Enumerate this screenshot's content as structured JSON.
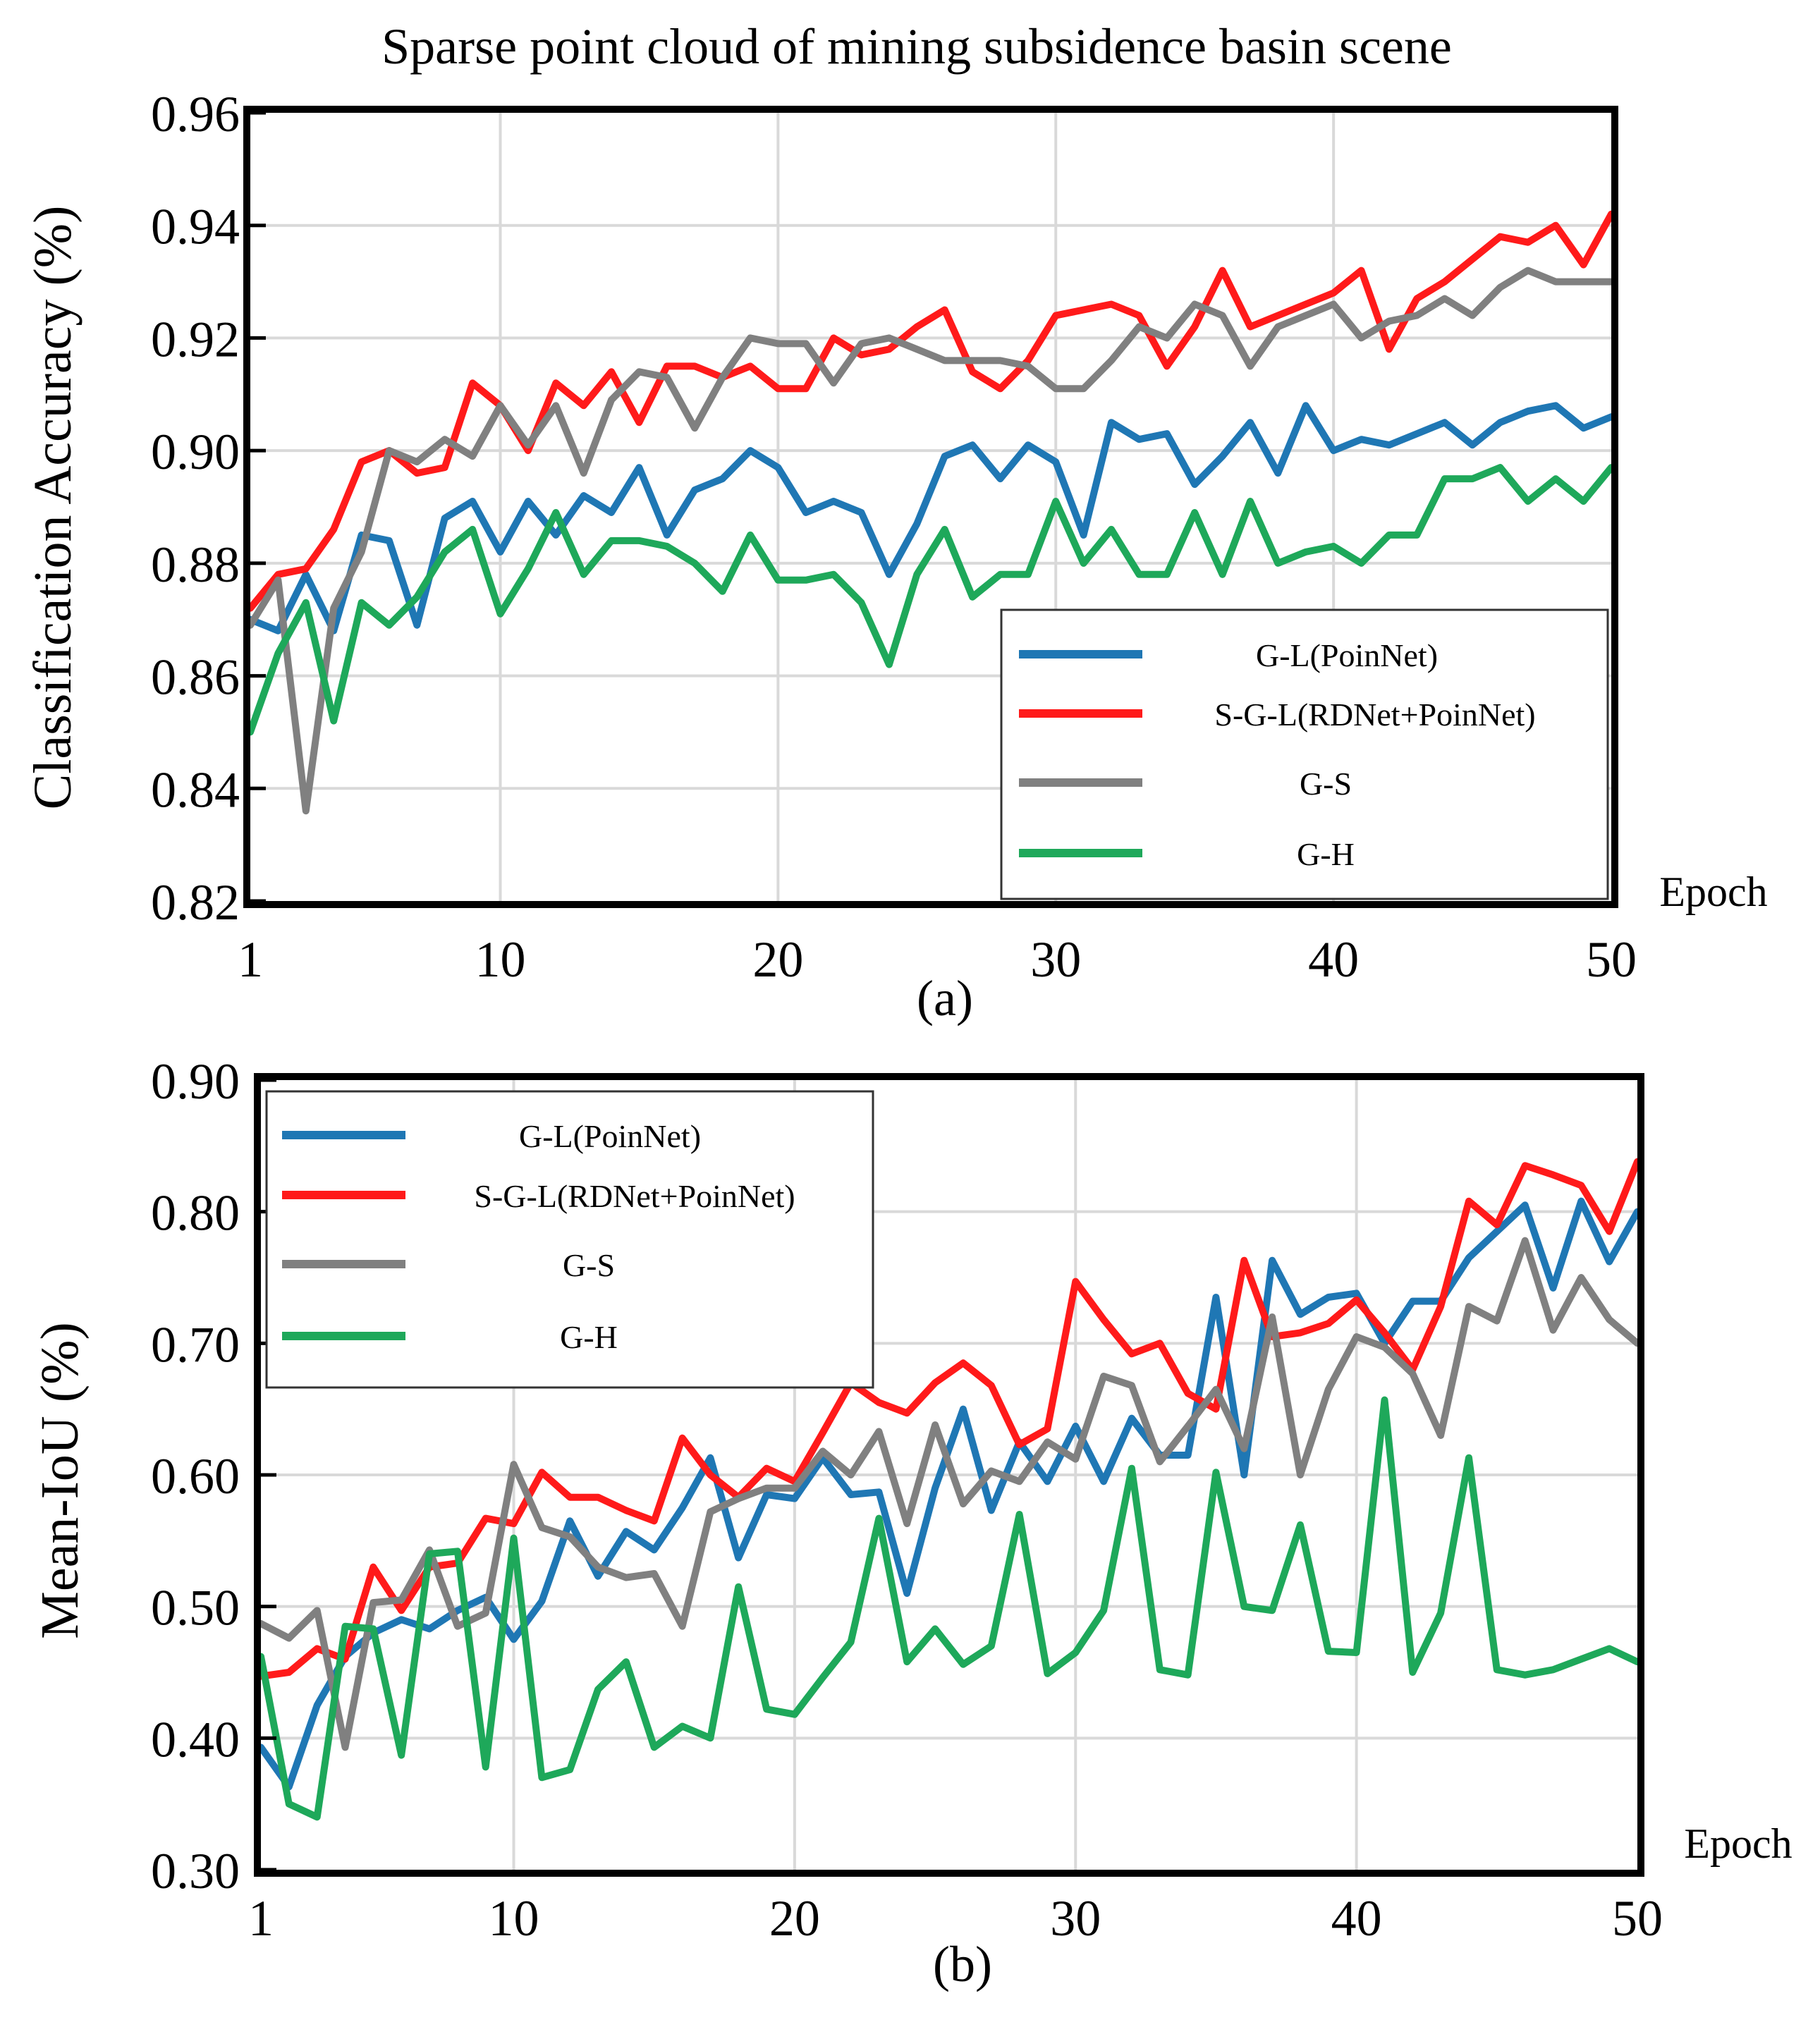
{
  "figure_title": "Sparse point cloud of mining subsidence basin scene",
  "colors": {
    "G-L(PoinNet)": "#1f77b4",
    "S-G-L(RDNet+PoinNet)": "#ff1a1a",
    "G-S": "#808080",
    "G-H": "#1ea85a"
  },
  "chart_data": [
    {
      "type": "line",
      "panel_label": "(a)",
      "title": "Sparse point cloud of mining subsidence basin scene",
      "xlabel": "Epoch",
      "ylabel": "Classification Accuracy (%)",
      "xlim": [
        1,
        50
      ],
      "ylim": [
        0.82,
        0.96
      ],
      "xticks": [
        1,
        10,
        20,
        30,
        40,
        50
      ],
      "yticks": [
        0.82,
        0.84,
        0.86,
        0.88,
        0.9,
        0.92,
        0.94,
        0.96
      ],
      "ytick_labels": [
        "0.82",
        "0.84",
        "0.86",
        "0.88",
        "0.90",
        "0.92",
        "0.94",
        "0.96"
      ],
      "grid": true,
      "legend_position": "lower-right",
      "series": [
        {
          "name": "G-L(PoinNet)",
          "values": [
            0.87,
            0.868,
            0.878,
            0.868,
            0.885,
            0.884,
            0.869,
            0.888,
            0.891,
            0.882,
            0.891,
            0.885,
            0.892,
            0.889,
            0.897,
            0.885,
            0.893,
            0.895,
            0.9,
            0.897,
            0.889,
            0.891,
            0.889,
            0.878,
            0.887,
            0.899,
            0.901,
            0.895,
            0.901,
            0.898,
            0.885,
            0.905,
            0.902,
            0.903,
            0.894,
            0.899,
            0.905,
            0.896,
            0.908,
            0.9,
            0.902,
            0.901,
            0.903,
            0.905,
            0.901,
            0.905,
            0.907,
            0.908,
            0.904,
            0.906
          ]
        },
        {
          "name": "S-G-L(RDNet+PoinNet)",
          "values": [
            0.872,
            0.878,
            0.879,
            0.886,
            0.898,
            0.9,
            0.896,
            0.897,
            0.912,
            0.908,
            0.9,
            0.912,
            0.908,
            0.914,
            0.905,
            0.915,
            0.915,
            0.913,
            0.915,
            0.911,
            0.911,
            0.92,
            0.917,
            0.918,
            0.922,
            0.925,
            0.914,
            0.911,
            0.916,
            0.924,
            0.925,
            0.926,
            0.924,
            0.915,
            0.922,
            0.932,
            0.922,
            0.924,
            0.926,
            0.928,
            0.932,
            0.918,
            0.927,
            0.93,
            0.934,
            0.938,
            0.937,
            0.94,
            0.933,
            0.942
          ]
        },
        {
          "name": "G-S",
          "values": [
            0.869,
            0.877,
            0.836,
            0.872,
            0.882,
            0.9,
            0.898,
            0.902,
            0.899,
            0.908,
            0.901,
            0.908,
            0.896,
            0.909,
            0.914,
            0.913,
            0.904,
            0.913,
            0.92,
            0.919,
            0.919,
            0.912,
            0.919,
            0.92,
            0.918,
            0.916,
            0.916,
            0.916,
            0.915,
            0.911,
            0.911,
            0.916,
            0.922,
            0.92,
            0.926,
            0.924,
            0.915,
            0.922,
            0.924,
            0.926,
            0.92,
            0.923,
            0.924,
            0.927,
            0.924,
            0.929,
            0.932,
            0.93,
            0.93,
            0.93
          ]
        },
        {
          "name": "G-H",
          "values": [
            0.85,
            0.864,
            0.873,
            0.852,
            0.873,
            0.869,
            0.874,
            0.882,
            0.886,
            0.871,
            0.879,
            0.889,
            0.878,
            0.884,
            0.884,
            0.883,
            0.88,
            0.875,
            0.885,
            0.877,
            0.877,
            0.878,
            0.873,
            0.862,
            0.878,
            0.886,
            0.874,
            0.878,
            0.878,
            0.891,
            0.88,
            0.886,
            0.878,
            0.878,
            0.889,
            0.878,
            0.891,
            0.88,
            0.882,
            0.883,
            0.88,
            0.885,
            0.885,
            0.895,
            0.895,
            0.897,
            0.891,
            0.895,
            0.891,
            0.897
          ]
        }
      ]
    },
    {
      "type": "line",
      "panel_label": "(b)",
      "title": "",
      "xlabel": "Epoch",
      "ylabel": "Mean-IoU  (%)",
      "xlim": [
        1,
        50
      ],
      "ylim": [
        0.3,
        0.9
      ],
      "xticks": [
        1,
        10,
        20,
        30,
        40,
        50
      ],
      "yticks": [
        0.3,
        0.4,
        0.5,
        0.6,
        0.7,
        0.8,
        0.9
      ],
      "ytick_labels": [
        "0.30",
        "0.40",
        "0.50",
        "0.60",
        "0.70",
        "0.80",
        "0.90"
      ],
      "grid": true,
      "legend_position": "upper-left",
      "series": [
        {
          "name": "G-L(PoinNet)",
          "values": [
            0.393,
            0.363,
            0.425,
            0.462,
            0.48,
            0.49,
            0.483,
            0.497,
            0.507,
            0.475,
            0.504,
            0.565,
            0.523,
            0.557,
            0.543,
            0.575,
            0.613,
            0.537,
            0.585,
            0.582,
            0.613,
            0.585,
            0.587,
            0.51,
            0.59,
            0.65,
            0.573,
            0.625,
            0.595,
            0.637,
            0.595,
            0.643,
            0.615,
            0.615,
            0.735,
            0.6,
            0.763,
            0.722,
            0.735,
            0.738,
            0.7,
            0.732,
            0.732,
            0.765,
            0.785,
            0.805,
            0.742,
            0.808,
            0.762,
            0.8
          ]
        },
        {
          "name": "S-G-L(RDNet+PoinNet)",
          "values": [
            0.447,
            0.45,
            0.468,
            0.46,
            0.53,
            0.497,
            0.53,
            0.533,
            0.567,
            0.563,
            0.602,
            0.583,
            0.583,
            0.573,
            0.565,
            0.628,
            0.6,
            0.583,
            0.605,
            0.595,
            0.632,
            0.67,
            0.655,
            0.647,
            0.67,
            0.685,
            0.668,
            0.623,
            0.635,
            0.747,
            0.718,
            0.692,
            0.7,
            0.662,
            0.65,
            0.763,
            0.705,
            0.708,
            0.715,
            0.733,
            0.708,
            0.68,
            0.728,
            0.808,
            0.79,
            0.835,
            0.828,
            0.82,
            0.785,
            0.838
          ]
        },
        {
          "name": "G-S",
          "values": [
            0.487,
            0.476,
            0.497,
            0.393,
            0.503,
            0.505,
            0.543,
            0.485,
            0.495,
            0.608,
            0.56,
            0.553,
            0.53,
            0.522,
            0.525,
            0.485,
            0.572,
            0.582,
            0.59,
            0.59,
            0.618,
            0.6,
            0.633,
            0.563,
            0.638,
            0.578,
            0.603,
            0.595,
            0.625,
            0.612,
            0.675,
            0.668,
            0.61,
            0.637,
            0.665,
            0.62,
            0.72,
            0.6,
            0.665,
            0.705,
            0.697,
            0.677,
            0.63,
            0.728,
            0.717,
            0.778,
            0.71,
            0.75,
            0.718,
            0.7
          ]
        },
        {
          "name": "G-H",
          "values": [
            0.462,
            0.35,
            0.34,
            0.485,
            0.483,
            0.387,
            0.54,
            0.542,
            0.378,
            0.552,
            0.37,
            0.376,
            0.437,
            0.458,
            0.393,
            0.409,
            0.4,
            0.515,
            0.422,
            0.418,
            0.446,
            0.473,
            0.567,
            0.458,
            0.483,
            0.456,
            0.47,
            0.57,
            0.449,
            0.465,
            0.497,
            0.605,
            0.452,
            0.448,
            0.602,
            0.5,
            0.497,
            0.562,
            0.466,
            0.465,
            0.657,
            0.45,
            0.495,
            0.613,
            0.452,
            0.448,
            0.452,
            0.46,
            0.468,
            0.458
          ]
        }
      ]
    }
  ]
}
